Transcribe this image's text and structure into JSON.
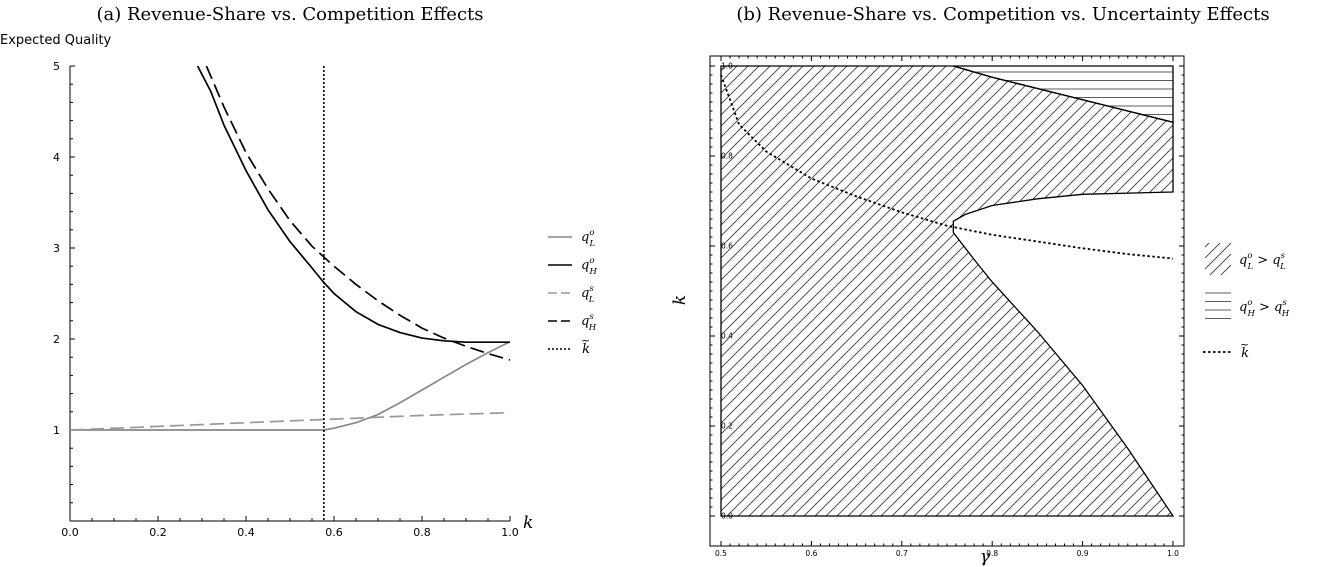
{
  "chart_data": [
    {
      "type": "line",
      "panel_title": "(a) Revenue-Share vs. Competition Effects",
      "ylabel": "Expected Quality",
      "xlabel": "k",
      "xlim": [
        0,
        1
      ],
      "ylim": [
        0,
        5
      ],
      "x_ticks": [
        "0.0",
        "0.2",
        "0.4",
        "0.6",
        "0.8",
        "1.0"
      ],
      "y_ticks": [
        "1",
        "2",
        "3",
        "4",
        "5"
      ],
      "legend_position": "right",
      "series": [
        {
          "name": "q_L^o",
          "label_main": "q",
          "label_sup": "o",
          "label_sub": "L",
          "color": "#888888",
          "dash": "solid",
          "x": [
            0,
            0.1,
            0.2,
            0.3,
            0.4,
            0.5,
            0.577,
            0.6,
            0.65,
            0.7,
            0.75,
            0.8,
            0.85,
            0.9,
            0.95,
            1.0
          ],
          "y": [
            1,
            1,
            1,
            1,
            1,
            1,
            1,
            1.02,
            1.08,
            1.17,
            1.3,
            1.44,
            1.58,
            1.72,
            1.85,
            1.97
          ]
        },
        {
          "name": "q_H^o",
          "label_main": "q",
          "label_sup": "o",
          "label_sub": "H",
          "color": "#000000",
          "dash": "solid",
          "x": [
            0.29,
            0.32,
            0.35,
            0.4,
            0.45,
            0.5,
            0.55,
            0.577,
            0.6,
            0.65,
            0.7,
            0.75,
            0.8,
            0.85,
            0.9,
            0.95,
            1.0
          ],
          "y": [
            5.0,
            4.72,
            4.35,
            3.85,
            3.42,
            3.07,
            2.78,
            2.62,
            2.5,
            2.3,
            2.16,
            2.07,
            2.01,
            1.98,
            1.965,
            1.965,
            1.965
          ]
        },
        {
          "name": "q_L^s",
          "label_main": "q",
          "label_sup": "s",
          "label_sub": "L",
          "color": "#999999",
          "dash": "long",
          "x": [
            0,
            0.2,
            0.4,
            0.6,
            0.8,
            1.0
          ],
          "y": [
            1,
            1.04,
            1.08,
            1.12,
            1.16,
            1.19
          ]
        },
        {
          "name": "q_H^s",
          "label_main": "q",
          "label_sup": "s",
          "label_sub": "H",
          "color": "#000000",
          "dash": "long",
          "x": [
            0.31,
            0.35,
            0.4,
            0.45,
            0.5,
            0.55,
            0.6,
            0.65,
            0.7,
            0.75,
            0.8,
            0.85,
            0.9,
            0.95,
            1.0
          ],
          "y": [
            5.0,
            4.55,
            4.05,
            3.65,
            3.3,
            3.02,
            2.8,
            2.6,
            2.42,
            2.26,
            2.12,
            2.01,
            1.92,
            1.84,
            1.77
          ]
        },
        {
          "name": "k~",
          "label_main": "k",
          "label_tilde": true,
          "color": "#000000",
          "dash": "dotted",
          "vertical_x": 0.577
        }
      ]
    },
    {
      "type": "area",
      "panel_title": "(b) Revenue-Share vs. Competition vs. Uncertainty Effects",
      "xlabel": "γ",
      "ylabel": "k",
      "xlim": [
        0.5,
        1.0
      ],
      "ylim": [
        0.0,
        1.0
      ],
      "x_ticks": [
        "0.5",
        "0.6",
        "0.7",
        "0.8",
        "0.9",
        "1.0"
      ],
      "y_ticks": [
        "0.0",
        "0.2",
        "0.4",
        "0.6",
        "0.8",
        "1.0"
      ],
      "legend_position": "right",
      "regions": [
        {
          "name": "q_L^o > q_L^s",
          "label_left": "q",
          "label_left_sup": "o",
          "label_left_sub": "L",
          "label_right": "q",
          "label_right_sup": "s",
          "label_right_sub": "L",
          "hatch": "diagonal",
          "outline_gamma": [
            0.5,
            0.757,
            0.8,
            0.85,
            0.9,
            0.95,
            1.0,
            1.0,
            0.9,
            0.85,
            0.8,
            0.77,
            0.757,
            0.757,
            0.78,
            0.8,
            0.85,
            0.9,
            0.95,
            1.0,
            0.5
          ],
          "outline_k": [
            1.0,
            1.0,
            0.975,
            0.95,
            0.925,
            0.9,
            0.875,
            0.72,
            0.715,
            0.705,
            0.69,
            0.67,
            0.655,
            0.63,
            0.57,
            0.52,
            0.41,
            0.29,
            0.15,
            0.0,
            0.0
          ]
        },
        {
          "name": "q_H^o > q_H^s",
          "label_left": "q",
          "label_left_sup": "o",
          "label_left_sub": "H",
          "label_right": "q",
          "label_right_sup": "s",
          "label_right_sub": "H",
          "hatch": "horizontal",
          "outline_gamma": [
            0.757,
            1.0,
            1.0,
            0.95,
            0.9,
            0.85,
            0.8
          ],
          "outline_k": [
            1.0,
            1.0,
            0.875,
            0.9,
            0.925,
            0.95,
            0.975
          ]
        }
      ],
      "curves": [
        {
          "name": "k~",
          "label_main": "k",
          "label_tilde": true,
          "dash": "dotted",
          "gamma": [
            0.5,
            0.52,
            0.55,
            0.6,
            0.65,
            0.7,
            0.75,
            0.8,
            0.85,
            0.9,
            0.95,
            1.0
          ],
          "k": [
            0.98,
            0.87,
            0.81,
            0.75,
            0.71,
            0.675,
            0.645,
            0.625,
            0.61,
            0.595,
            0.582,
            0.572
          ]
        }
      ]
    }
  ]
}
